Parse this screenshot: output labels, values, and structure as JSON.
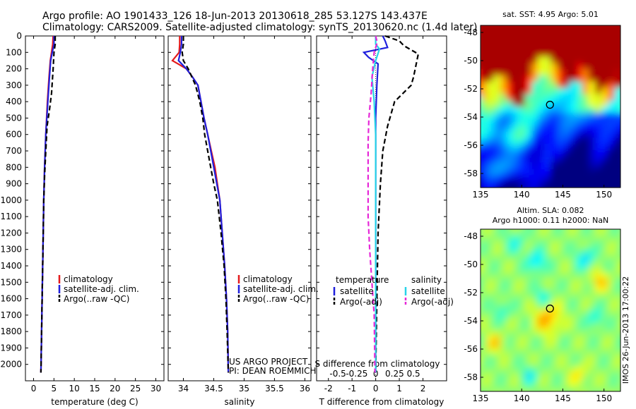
{
  "title_line1": "Argo profile: AO 1901433_126 18-Jun-2013 20130618_285 53.127S 143.437E",
  "title_line2": "Climatology: CARS2009. Satellite-adjusted climatology: synTS_20130620.nc (1.4d later)",
  "depth_ticks": [
    0,
    100,
    200,
    300,
    400,
    500,
    600,
    700,
    800,
    900,
    1000,
    1100,
    1200,
    1300,
    1400,
    1500,
    1600,
    1700,
    1800,
    1900,
    2000
  ],
  "colors": {
    "climatology": "#e41a1c",
    "satellite": "#1f1fdd",
    "argo": "#000000",
    "satellite_s": "#27d3e8",
    "argo_s": "#e628d8"
  },
  "chart_data": [
    {
      "type": "line",
      "xlabel": "temperature (deg C)",
      "xlim": [
        -2,
        32
      ],
      "xticks": [
        0,
        5,
        10,
        15,
        20,
        25,
        30
      ],
      "ylim": [
        2100,
        0
      ],
      "legend": [
        "climatology",
        "satellite-adj. clim.",
        "Argo(..raw -QC)"
      ],
      "series": [
        {
          "name": "climatology",
          "style": "solid",
          "color": "#e41a1c",
          "points": [
            [
              4.8,
              0
            ],
            [
              4.7,
              50
            ],
            [
              4.4,
              100
            ],
            [
              4.1,
              150
            ],
            [
              3.8,
              250
            ],
            [
              3.4,
              400
            ],
            [
              3.0,
              600
            ],
            [
              2.7,
              800
            ],
            [
              2.5,
              1000
            ],
            [
              2.3,
              1300
            ],
            [
              2.1,
              1600
            ],
            [
              1.9,
              1900
            ],
            [
              1.8,
              2050
            ]
          ]
        },
        {
          "name": "satellite-adj. clim.",
          "style": "solid",
          "color": "#1f1fdd",
          "points": [
            [
              5.0,
              0
            ],
            [
              5.0,
              50
            ],
            [
              4.6,
              100
            ],
            [
              4.2,
              150
            ],
            [
              3.9,
              250
            ],
            [
              3.5,
              400
            ],
            [
              3.0,
              600
            ],
            [
              2.7,
              800
            ],
            [
              2.5,
              1000
            ],
            [
              2.3,
              1300
            ],
            [
              2.1,
              1600
            ],
            [
              1.9,
              1900
            ],
            [
              1.8,
              2050
            ]
          ]
        },
        {
          "name": "Argo(..raw -QC)",
          "style": "dashed",
          "color": "#000000",
          "points": [
            [
              5.3,
              0
            ],
            [
              5.3,
              50
            ],
            [
              5.0,
              100
            ],
            [
              4.8,
              200
            ],
            [
              4.4,
              350
            ],
            [
              3.9,
              450
            ],
            [
              3.3,
              550
            ],
            [
              3.0,
              700
            ],
            [
              2.7,
              850
            ],
            [
              2.5,
              1000
            ],
            [
              2.3,
              1300
            ],
            [
              2.1,
              1600
            ],
            [
              1.9,
              1900
            ],
            [
              1.8,
              2050
            ]
          ]
        }
      ]
    },
    {
      "type": "line",
      "xlabel": "salinity",
      "xlim": [
        33.75,
        36.1
      ],
      "xticks": [
        34,
        34.5,
        35,
        35.5,
        36
      ],
      "xticklabels": [
        "34",
        "34.5",
        "35",
        "35.5",
        "36"
      ],
      "ylim": [
        2100,
        0
      ],
      "legend": [
        "climatology",
        "satellite-adj. clim.",
        "Argo(..raw -QC)"
      ],
      "annotations": [
        "US ARGO PROJECT",
        "PI: DEAN ROEMMICH"
      ],
      "series": [
        {
          "name": "climatology",
          "style": "solid",
          "color": "#e41a1c",
          "points": [
            [
              33.94,
              0
            ],
            [
              33.94,
              50
            ],
            [
              33.93,
              100
            ],
            [
              33.82,
              150
            ],
            [
              34.05,
              200
            ],
            [
              34.15,
              250
            ],
            [
              34.24,
              300
            ],
            [
              34.29,
              400
            ],
            [
              34.34,
              500
            ],
            [
              34.4,
              600
            ],
            [
              34.46,
              700
            ],
            [
              34.52,
              800
            ],
            [
              34.56,
              900
            ],
            [
              34.6,
              1000
            ],
            [
              34.64,
              1200
            ],
            [
              34.68,
              1400
            ],
            [
              34.71,
              1600
            ],
            [
              34.73,
              1800
            ],
            [
              34.74,
              2050
            ]
          ]
        },
        {
          "name": "satellite-adj. clim.",
          "style": "solid",
          "color": "#1f1fdd",
          "points": [
            [
              33.97,
              0
            ],
            [
              33.97,
              50
            ],
            [
              33.95,
              100
            ],
            [
              33.92,
              150
            ],
            [
              34.05,
              200
            ],
            [
              34.15,
              250
            ],
            [
              34.24,
              300
            ],
            [
              34.29,
              400
            ],
            [
              34.34,
              500
            ],
            [
              34.4,
              600
            ],
            [
              34.45,
              700
            ],
            [
              34.5,
              800
            ],
            [
              34.55,
              900
            ],
            [
              34.6,
              1000
            ],
            [
              34.64,
              1200
            ],
            [
              34.68,
              1400
            ],
            [
              34.71,
              1600
            ],
            [
              34.73,
              1800
            ],
            [
              34.74,
              2050
            ]
          ]
        },
        {
          "name": "Argo(..raw -QC)",
          "style": "dashed",
          "color": "#000000",
          "points": [
            [
              34.0,
              0
            ],
            [
              34.0,
              50
            ],
            [
              33.98,
              100
            ],
            [
              34.0,
              150
            ],
            [
              34.08,
              200
            ],
            [
              34.14,
              250
            ],
            [
              34.2,
              300
            ],
            [
              34.27,
              400
            ],
            [
              34.32,
              500
            ],
            [
              34.35,
              600
            ],
            [
              34.4,
              700
            ],
            [
              34.45,
              800
            ],
            [
              34.5,
              900
            ],
            [
              34.56,
              1000
            ],
            [
              34.62,
              1200
            ],
            [
              34.67,
              1400
            ],
            [
              34.7,
              1600
            ],
            [
              34.72,
              1800
            ],
            [
              34.74,
              2050
            ]
          ]
        }
      ]
    },
    {
      "type": "line",
      "xlabel": "T difference from climatology",
      "xlabel_top": "S difference from climatology",
      "xlim": [
        -2.5,
        3.0
      ],
      "xticks": [
        -2,
        -1,
        0,
        1,
        2
      ],
      "xticks_top": [
        -0.5,
        -0.25,
        0,
        0.25,
        0.5
      ],
      "xticks_top_labels": [
        "-0.5",
        "-0.25",
        "0",
        "0.25",
        "0.5"
      ],
      "ylim": [
        2100,
        0
      ],
      "legend_groups": [
        {
          "header": "temperature",
          "items": [
            "satellite",
            "Argo(-adj)"
          ]
        },
        {
          "header": "salinity",
          "items": [
            "satellite",
            "Argo(-adj)"
          ]
        }
      ],
      "series": [
        {
          "name": "temperature satellite",
          "style": "solid",
          "color": "#1f1fdd",
          "points": [
            [
              0.3,
              0
            ],
            [
              0.4,
              30
            ],
            [
              0.5,
              70
            ],
            [
              -0.5,
              100
            ],
            [
              -0.3,
              130
            ],
            [
              0.1,
              170
            ],
            [
              0.05,
              300
            ],
            [
              0.0,
              500
            ],
            [
              0.0,
              1000
            ],
            [
              0.0,
              1500
            ],
            [
              0.0,
              2050
            ]
          ]
        },
        {
          "name": "temperature Argo(-adj)",
          "style": "dashed",
          "color": "#000000",
          "points": [
            [
              0.4,
              0
            ],
            [
              1.0,
              30
            ],
            [
              1.2,
              60
            ],
            [
              1.8,
              110
            ],
            [
              1.6,
              250
            ],
            [
              1.5,
              300
            ],
            [
              0.8,
              400
            ],
            [
              0.5,
              550
            ],
            [
              0.3,
              700
            ],
            [
              0.2,
              900
            ],
            [
              0.1,
              1200
            ],
            [
              0.05,
              1600
            ],
            [
              0.0,
              2050
            ]
          ]
        },
        {
          "name": "salinity satellite",
          "style": "solid",
          "color": "#27d3e8",
          "points": [
            [
              0.0,
              0
            ],
            [
              0.0,
              50
            ],
            [
              0.05,
              80
            ],
            [
              0.0,
              150
            ],
            [
              -0.05,
              250
            ],
            [
              -0.02,
              400
            ],
            [
              0.0,
              600
            ],
            [
              0.0,
              1000
            ],
            [
              0.0,
              1500
            ],
            [
              0.0,
              2050
            ]
          ]
        },
        {
          "name": "salinity Argo(-adj)",
          "style": "dashed",
          "color": "#e628d8",
          "points": [
            [
              0.0,
              0
            ],
            [
              0.02,
              40
            ],
            [
              -0.02,
              100
            ],
            [
              -0.04,
              200
            ],
            [
              -0.06,
              350
            ],
            [
              -0.09,
              500
            ],
            [
              -0.1,
              650
            ],
            [
              -0.1,
              900
            ],
            [
              -0.1,
              1100
            ],
            [
              -0.08,
              1300
            ],
            [
              -0.05,
              1500
            ],
            [
              -0.02,
              1700
            ],
            [
              -0.01,
              2050
            ]
          ]
        }
      ]
    },
    {
      "type": "heatmap",
      "title": "sat. SST: 4.95 Argo: 5.01",
      "xticks": [
        135,
        140,
        145,
        150
      ],
      "yticks": [
        "-48",
        "-50",
        "-52",
        "-54",
        "-56",
        "-58"
      ],
      "xlim": [
        135,
        152
      ],
      "ylim": [
        -59,
        -47.5
      ],
      "marker": {
        "lon": 143.437,
        "lat": -53.127
      }
    },
    {
      "type": "heatmap",
      "title": "Altim. SLA: 0.082",
      "subtitle": "Argo h1000: 0.11 h2000: NaN",
      "xticks": [
        135,
        140,
        145,
        150
      ],
      "yticks": [
        "-48",
        "-50",
        "-52",
        "-54",
        "-56",
        "-58"
      ],
      "xlim": [
        135,
        152
      ],
      "ylim": [
        -59,
        -47.5
      ],
      "marker": {
        "lon": 143.437,
        "lat": -53.127
      },
      "side_label": "IMOS 26-Jun-2013 17:00:22"
    }
  ]
}
